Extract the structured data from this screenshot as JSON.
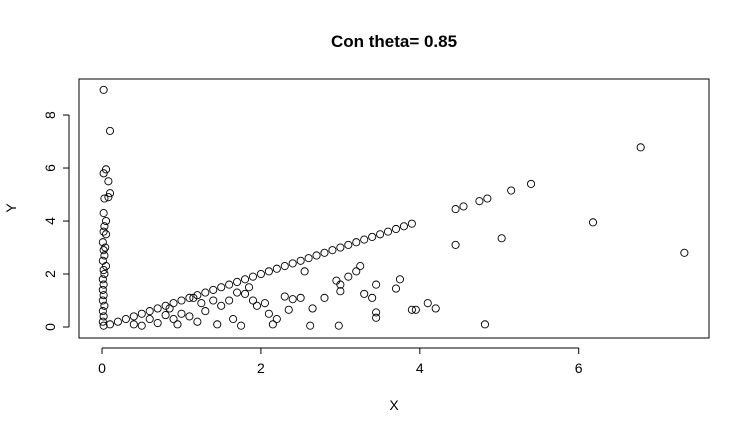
{
  "chart_data": {
    "type": "scatter",
    "title": "Con theta= 0.85",
    "x_label": "X",
    "y_label": "Y",
    "x": [
      0.02,
      0.1,
      0.05,
      0.02,
      0.08,
      0.1,
      0.08,
      0.03,
      0.02,
      0.05,
      0.03,
      0.02,
      0.05,
      0.01,
      0.04,
      0.02,
      0.03,
      0.01,
      0.05,
      0.02,
      0.03,
      0.01,
      0.02,
      0.01,
      0.02,
      0.01,
      0.03,
      0.01,
      0.02,
      0.01,
      0.02,
      0.1,
      0.2,
      0.3,
      0.4,
      0.5,
      0.6,
      0.7,
      0.8,
      0.9,
      1.0,
      1.1,
      1.2,
      1.3,
      1.4,
      1.5,
      1.6,
      1.7,
      1.8,
      1.9,
      2.0,
      2.1,
      2.2,
      2.3,
      2.4,
      2.5,
      2.6,
      2.7,
      2.8,
      2.9,
      3.0,
      3.1,
      3.2,
      3.3,
      3.4,
      3.5,
      3.6,
      3.7,
      3.8,
      3.9,
      4.45,
      4.55,
      4.75,
      4.85,
      5.15,
      5.4,
      6.78,
      6.18,
      7.33,
      5.03,
      4.45,
      4.82,
      4.1,
      4.2,
      3.9,
      3.95,
      3.75,
      3.7,
      3.45,
      3.4,
      3.45,
      3.45,
      3.25,
      3.2,
      3.3,
      3.1,
      3.0,
      3.0,
      2.95,
      2.98,
      2.8,
      2.65,
      2.62,
      2.55,
      2.5,
      2.4,
      2.3,
      2.35,
      2.2,
      2.1,
      2.05,
      1.95,
      1.9,
      1.85,
      1.8,
      1.7,
      1.65,
      1.6,
      1.5,
      1.45,
      1.4,
      1.3,
      1.2,
      1.15,
      1.1,
      1.0,
      0.95,
      0.9,
      0.8,
      0.7,
      0.6,
      0.5,
      0.4,
      1.25,
      1.75,
      2.15,
      0.85
    ],
    "y": [
      8.95,
      7.4,
      5.95,
      5.8,
      5.5,
      5.05,
      4.9,
      4.85,
      4.3,
      4.0,
      3.8,
      3.6,
      3.5,
      3.2,
      3.0,
      2.9,
      2.7,
      2.5,
      2.3,
      2.15,
      2.0,
      1.8,
      1.6,
      1.4,
      1.2,
      1.0,
      0.8,
      0.6,
      0.4,
      0.2,
      0.05,
      0.1,
      0.2,
      0.3,
      0.4,
      0.5,
      0.6,
      0.7,
      0.8,
      0.9,
      1.0,
      1.1,
      1.2,
      1.3,
      1.4,
      1.5,
      1.6,
      1.7,
      1.8,
      1.9,
      2.0,
      2.1,
      2.2,
      2.3,
      2.4,
      2.5,
      2.6,
      2.7,
      2.8,
      2.9,
      3.0,
      3.1,
      3.2,
      3.3,
      3.4,
      3.5,
      3.6,
      3.7,
      3.8,
      3.9,
      4.45,
      4.55,
      4.75,
      4.85,
      5.15,
      5.4,
      6.78,
      3.95,
      2.8,
      3.35,
      3.1,
      0.1,
      0.9,
      0.7,
      0.65,
      0.65,
      1.8,
      1.45,
      1.6,
      1.1,
      0.55,
      0.35,
      2.3,
      2.1,
      1.25,
      1.9,
      1.6,
      1.35,
      1.75,
      0.05,
      1.1,
      0.7,
      0.05,
      2.1,
      1.1,
      1.05,
      1.15,
      0.65,
      0.3,
      0.5,
      0.9,
      0.8,
      1.0,
      1.5,
      1.25,
      1.3,
      0.3,
      1.0,
      0.8,
      0.1,
      1.0,
      0.6,
      0.2,
      1.1,
      0.4,
      0.5,
      0.1,
      0.3,
      0.45,
      0.15,
      0.3,
      0.05,
      0.1,
      0.9,
      0.05,
      0.1,
      0.7
    ],
    "xlim": [
      -0.29,
      7.64
    ],
    "ylim": [
      -0.415,
      9.36
    ],
    "xticks": [
      0,
      2,
      4,
      6
    ],
    "yticks": [
      0,
      2,
      4,
      6,
      8
    ],
    "grid": false
  }
}
